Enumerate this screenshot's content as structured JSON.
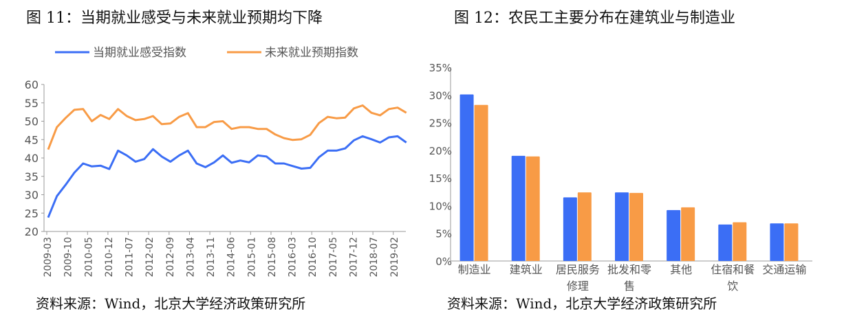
{
  "chart_data": [
    {
      "type": "line",
      "title": "图 11：当期就业感受与未来就业预期均下降",
      "source": "资料来源：Wind，北京大学经济政策研究所",
      "ylim": [
        20,
        60
      ],
      "yticks": [
        20,
        25,
        30,
        35,
        40,
        45,
        50,
        55,
        60
      ],
      "xtick_labels": [
        "2009-03",
        "2009-10",
        "2010-05",
        "2010-12",
        "2011-07",
        "2012-02",
        "2012-09",
        "2013-04",
        "2013-11",
        "2014-06",
        "2015-01",
        "2015-08",
        "2016-03",
        "2016-10",
        "2017-05",
        "2017-12",
        "2018-07",
        "2019-02"
      ],
      "x_start": "2009-03",
      "x_step_months": 3,
      "legend_position": "top",
      "grid": false,
      "series": [
        {
          "name": "当期就业感受指数",
          "color": "#3B6EF5",
          "values": [
            23.8,
            29.6,
            32.7,
            36.0,
            38.5,
            37.7,
            37.9,
            37.0,
            42.0,
            40.7,
            39.0,
            39.7,
            42.4,
            40.4,
            39.0,
            40.7,
            42.0,
            38.5,
            37.5,
            38.8,
            40.7,
            38.7,
            39.3,
            38.8,
            40.7,
            40.4,
            38.5,
            38.5,
            37.8,
            37.1,
            37.3,
            40.2,
            42.0,
            42.0,
            42.6,
            44.8,
            45.9,
            45.1,
            44.2,
            45.6,
            45.9,
            44.2
          ]
        },
        {
          "name": "未来就业预期指数",
          "color": "#F89B46",
          "values": [
            42.3,
            48.4,
            50.9,
            53.1,
            53.3,
            50.0,
            51.7,
            50.6,
            53.3,
            51.4,
            50.3,
            50.6,
            51.4,
            49.2,
            49.4,
            51.2,
            52.2,
            48.4,
            48.4,
            49.8,
            50.0,
            47.9,
            48.4,
            48.4,
            47.9,
            47.9,
            46.4,
            45.4,
            44.9,
            45.1,
            46.3,
            49.5,
            51.2,
            50.8,
            51.0,
            53.5,
            54.3,
            52.3,
            51.6,
            53.3,
            53.7,
            52.3
          ]
        }
      ]
    },
    {
      "type": "bar",
      "title": "图 12：农民工主要分布在建筑业与制造业",
      "source": "资料来源：Wind，北京大学经济政策研究所",
      "ylim": [
        0,
        35
      ],
      "yticks": [
        "0%",
        "5%",
        "10%",
        "15%",
        "20%",
        "25%",
        "30%",
        "35%"
      ],
      "categories": [
        [
          "制造业"
        ],
        [
          "建筑业"
        ],
        [
          "居民服务",
          "修理"
        ],
        [
          "批发和零",
          "售"
        ],
        [
          "其他"
        ],
        [
          "住宿和餐",
          "饮"
        ],
        [
          "交通运输"
        ]
      ],
      "grid": false,
      "series": [
        {
          "color": "#3B6EF5",
          "values": [
            30.1,
            19.0,
            11.5,
            12.4,
            9.2,
            6.6,
            6.8
          ]
        },
        {
          "color": "#F89B46",
          "values": [
            28.2,
            18.9,
            12.4,
            12.3,
            9.7,
            7.0,
            6.8
          ]
        }
      ]
    }
  ]
}
